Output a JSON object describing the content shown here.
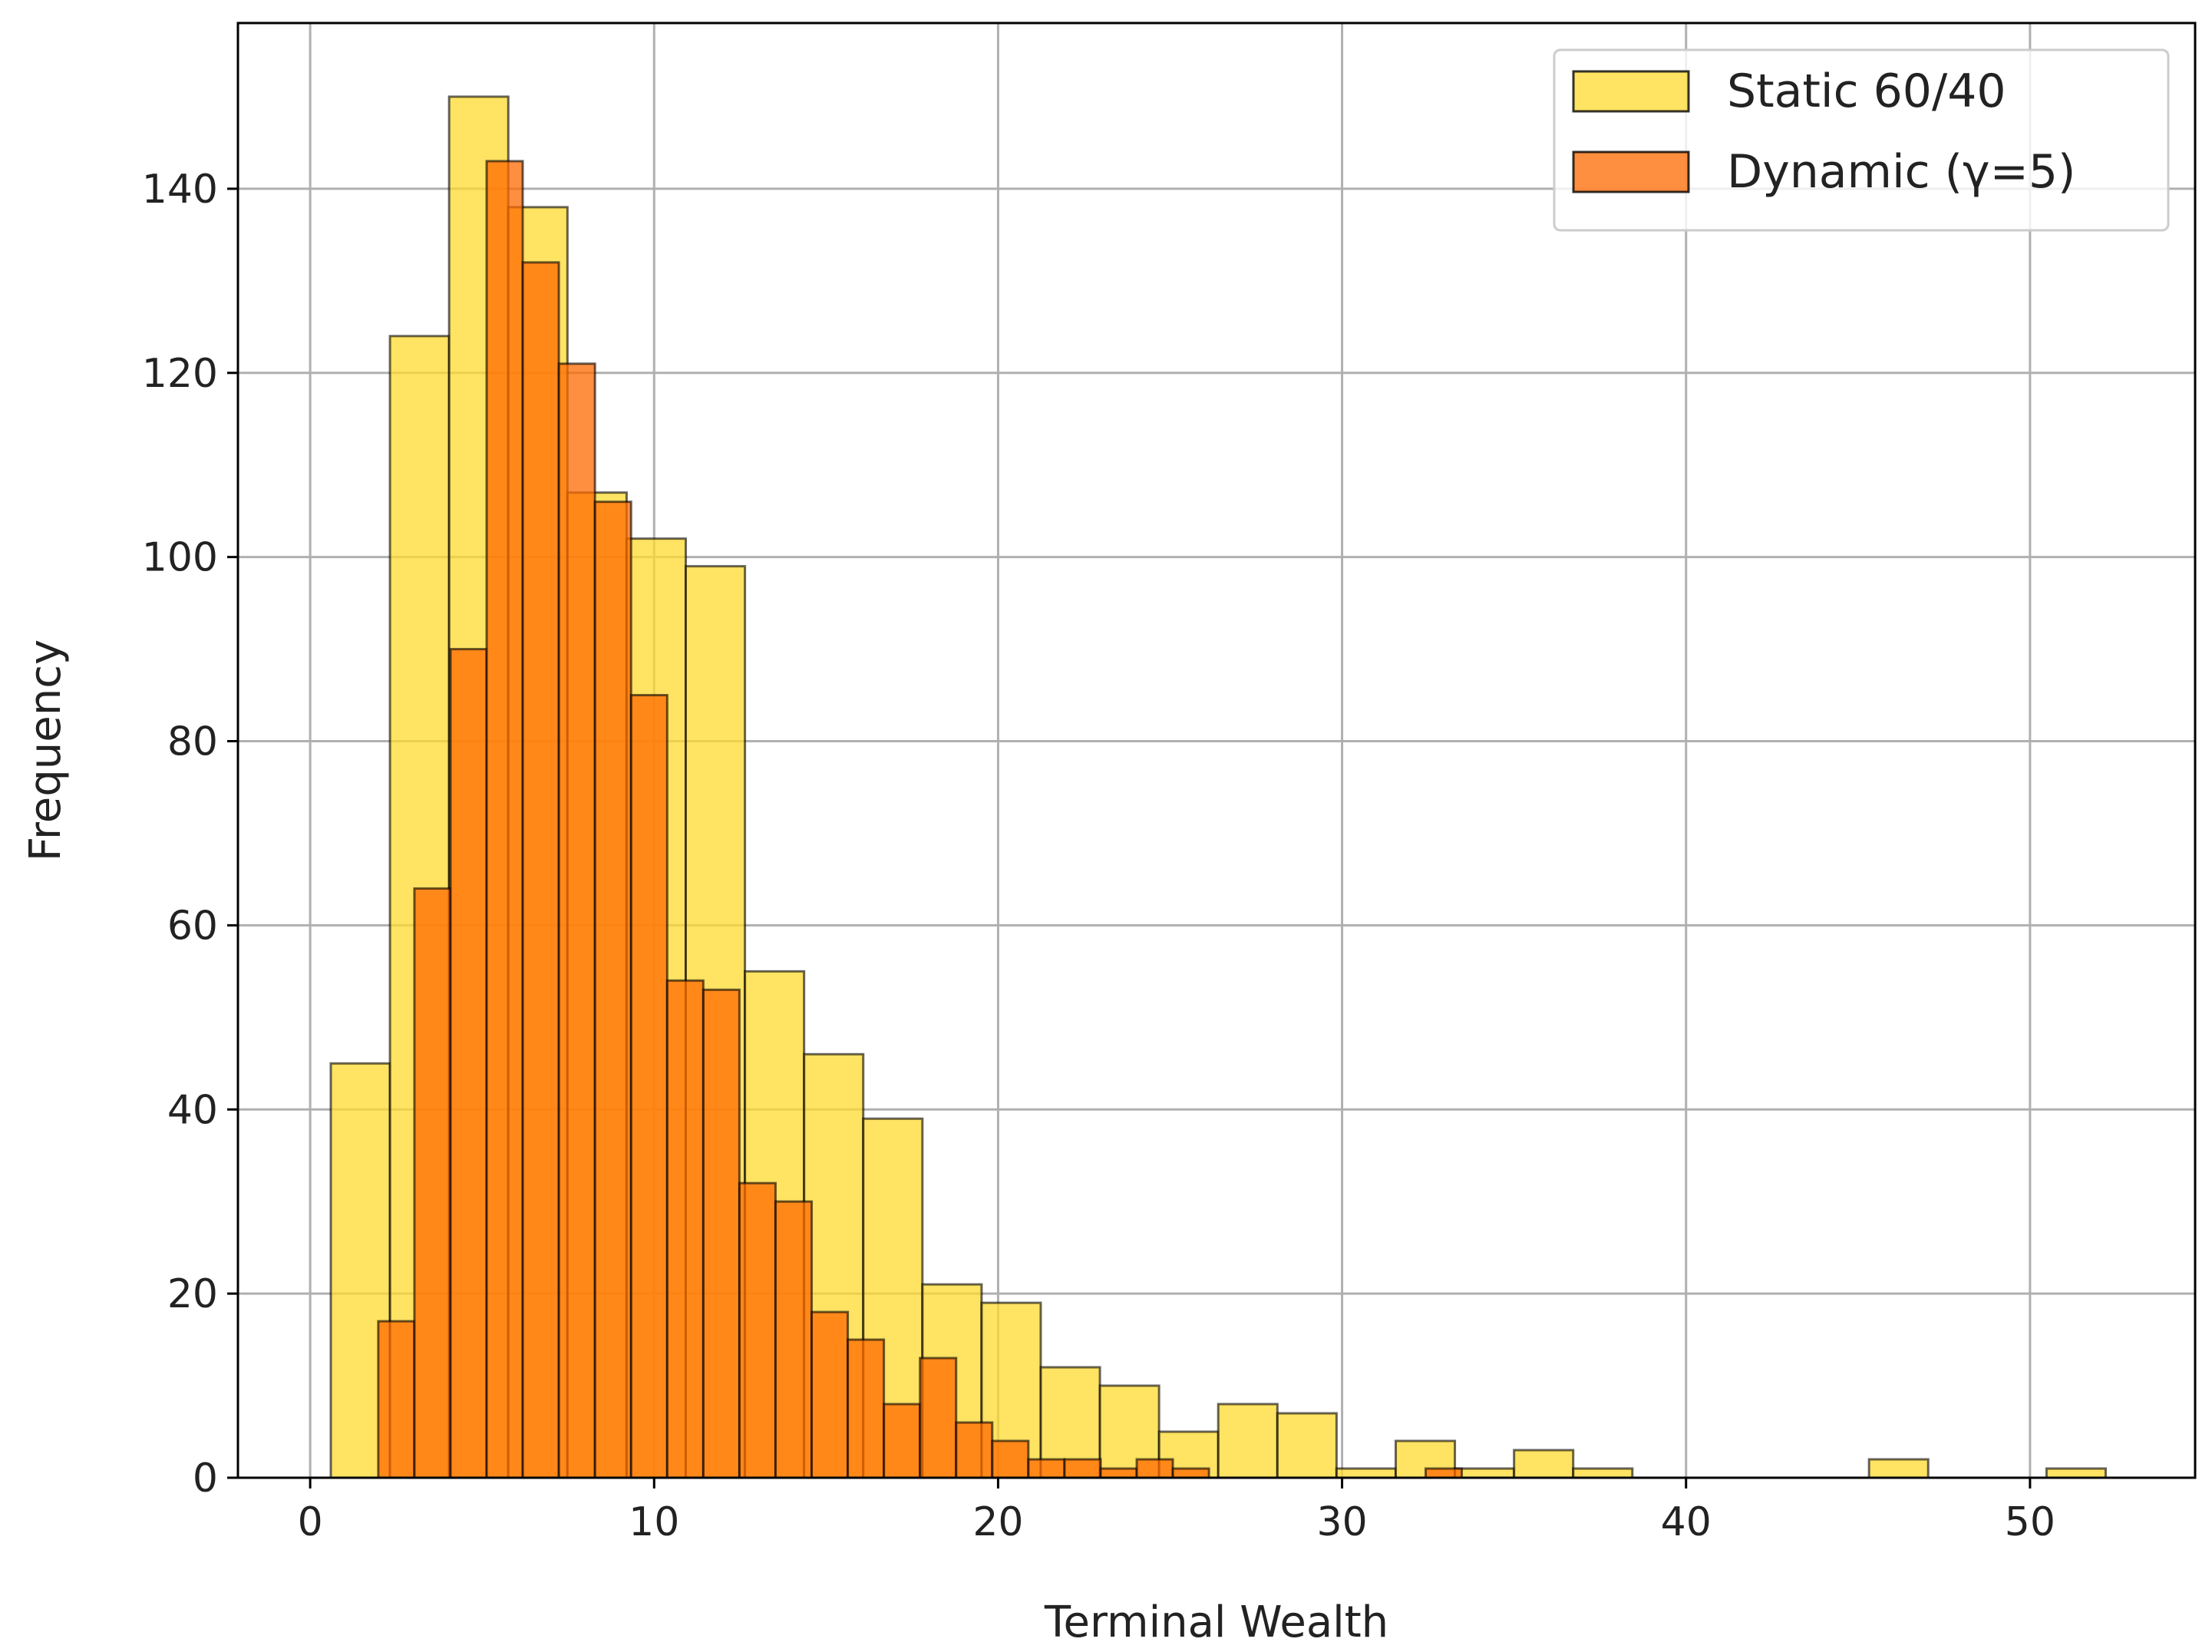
{
  "chart_data": {
    "type": "histogram",
    "xlabel": "Terminal Wealth",
    "ylabel": "Frequency",
    "xlim": [
      -2.1,
      54.8
    ],
    "ylim": [
      0,
      158
    ],
    "xticks": [
      "0",
      "10",
      "20",
      "30",
      "40",
      "50"
    ],
    "yticks": [
      "0",
      "20",
      "40",
      "60",
      "80",
      "100",
      "120",
      "140"
    ],
    "grid": true,
    "legend": {
      "placement": "top-right",
      "entries": [
        "Static 60/40",
        "Dynamic (γ=5)"
      ]
    },
    "series": [
      {
        "name": "Static 60/40",
        "color": "#FFD92F",
        "bin_edges": [
          0.6,
          2.32,
          4.04,
          5.76,
          7.48,
          9.2,
          10.92,
          12.64,
          14.36,
          16.08,
          17.8,
          19.52,
          21.24,
          22.96,
          24.68,
          26.4,
          28.12,
          29.84,
          31.56,
          33.28,
          35.0,
          36.72,
          38.44,
          40.16,
          41.88,
          43.6,
          45.32,
          47.04,
          48.76,
          50.48,
          52.2
        ],
        "counts": [
          45,
          124,
          150,
          138,
          107,
          102,
          99,
          55,
          46,
          39,
          21,
          19,
          12,
          10,
          5,
          8,
          7,
          1,
          4,
          1,
          3,
          1,
          0,
          0,
          0,
          0,
          2,
          0,
          0,
          1
        ]
      },
      {
        "name": "Dynamic (γ=5)",
        "color": "#FF6A00",
        "bin_edges": [
          1.98,
          3.03,
          4.08,
          5.13,
          6.18,
          7.23,
          8.28,
          9.33,
          10.38,
          11.43,
          12.48,
          13.53,
          14.58,
          15.63,
          16.68,
          17.73,
          18.78,
          19.83,
          20.88,
          21.93,
          22.98,
          24.03,
          25.08,
          26.13,
          27.18,
          28.23,
          29.28,
          30.33,
          31.38,
          32.43,
          33.48
        ],
        "counts": [
          17,
          64,
          90,
          143,
          132,
          121,
          106,
          85,
          54,
          53,
          32,
          30,
          18,
          15,
          8,
          13,
          6,
          4,
          2,
          2,
          1,
          2,
          1,
          0,
          0,
          0,
          0,
          0,
          0,
          1
        ]
      }
    ]
  }
}
